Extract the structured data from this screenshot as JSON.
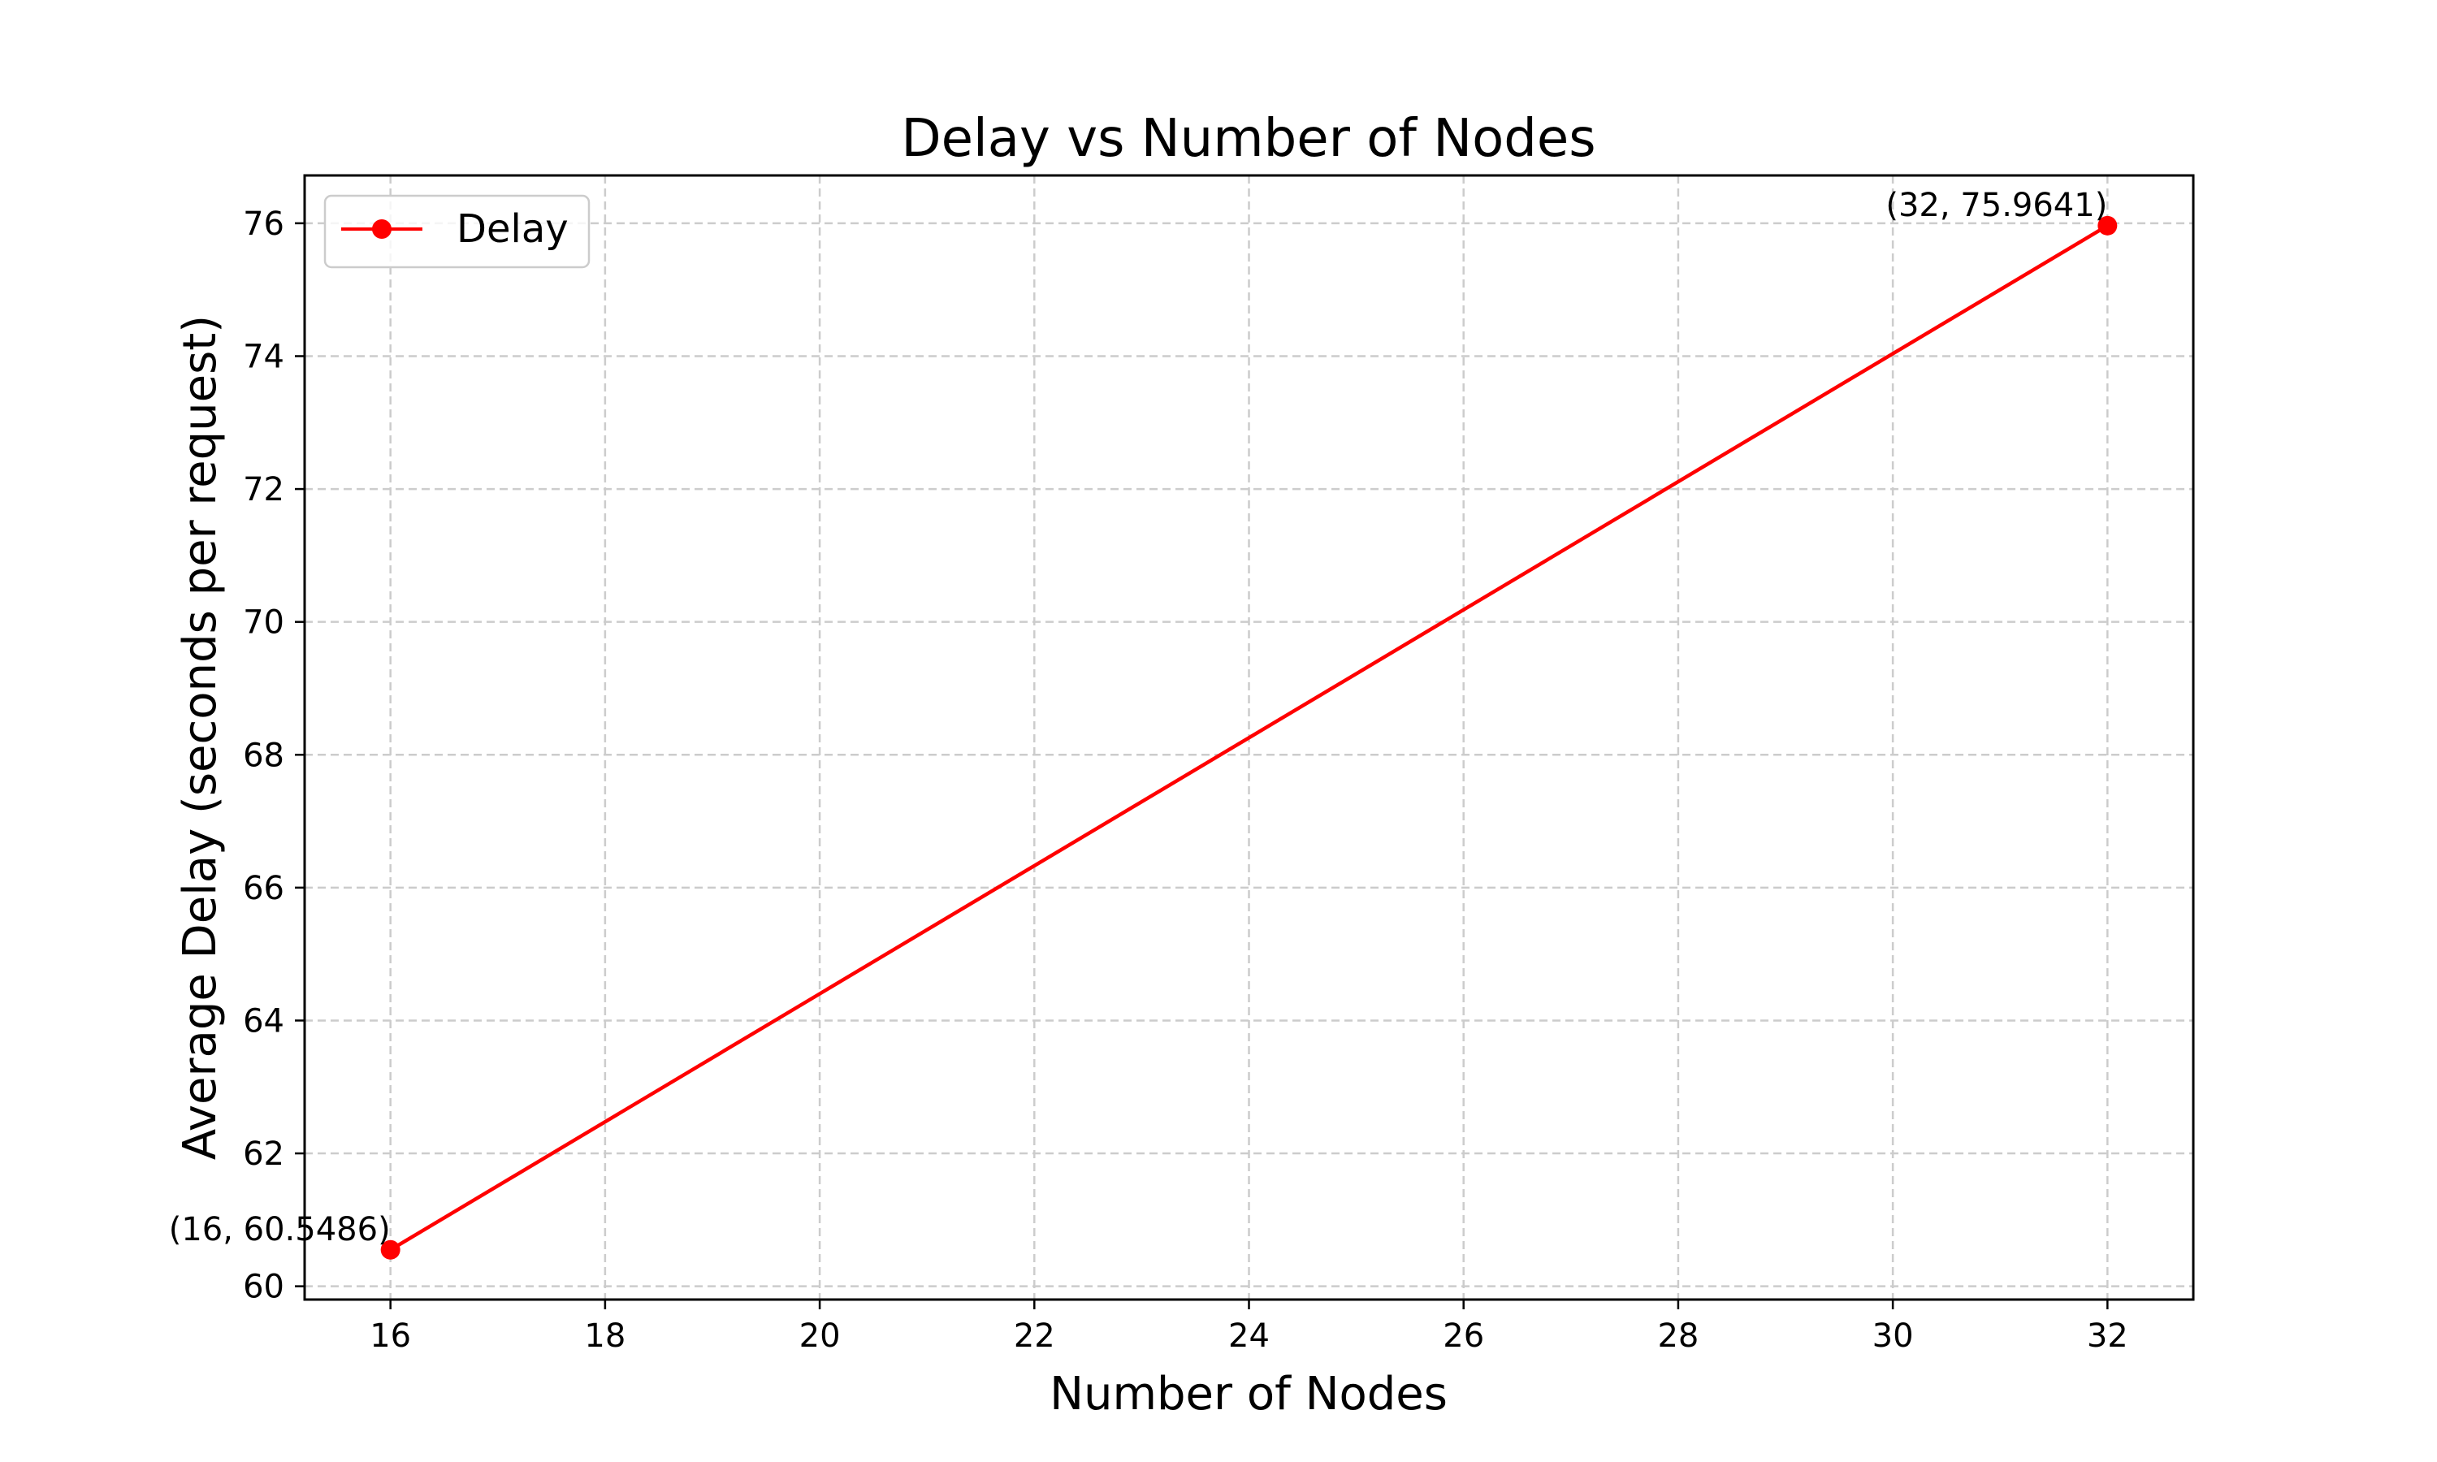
{
  "chart_data": {
    "type": "line",
    "title": "Delay vs Number of Nodes",
    "xlabel": "Number of Nodes",
    "ylabel": "Average Delay (seconds per request)",
    "xlim": [
      15.2,
      32.8
    ],
    "ylim": [
      59.8,
      76.72
    ],
    "xticks": [
      16,
      18,
      20,
      22,
      24,
      26,
      28,
      30,
      32
    ],
    "yticks": [
      60,
      62,
      64,
      66,
      68,
      70,
      72,
      74,
      76
    ],
    "grid": true,
    "legend_position": "top-left",
    "series": [
      {
        "name": "Delay",
        "color": "#ff0000",
        "marker": "circle",
        "x": [
          16,
          32
        ],
        "y": [
          60.5486,
          75.9641
        ]
      }
    ],
    "annotations": [
      {
        "text": "(16, 60.5486)",
        "x": 16,
        "y": 60.5486
      },
      {
        "text": "(32, 75.9641)",
        "x": 32,
        "y": 75.9641
      }
    ]
  }
}
